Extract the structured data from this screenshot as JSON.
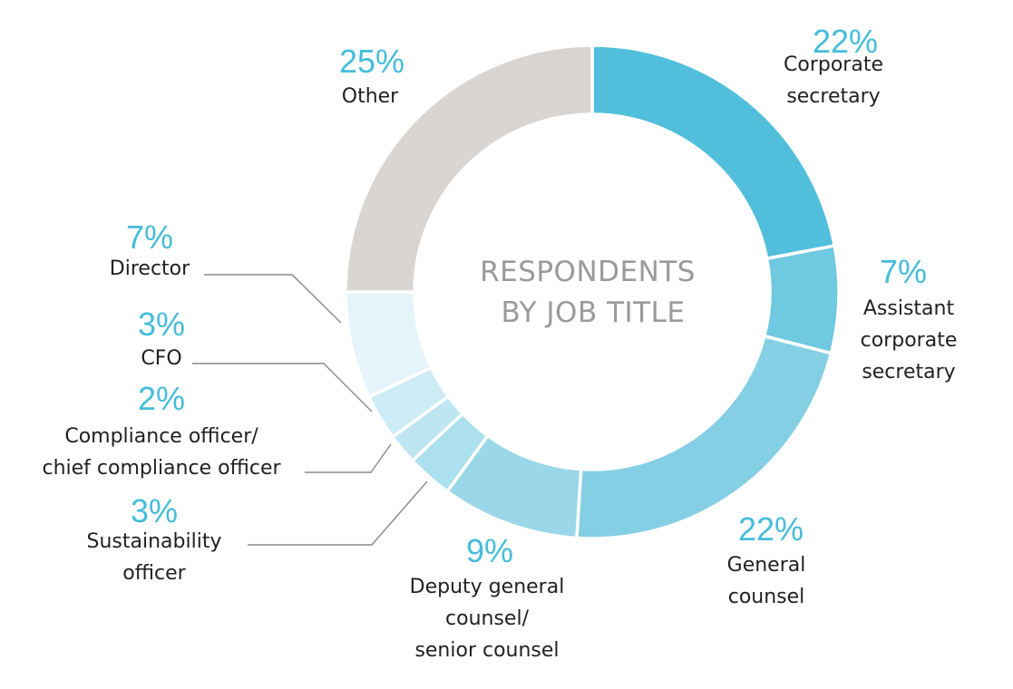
{
  "chart_data": {
    "type": "pie",
    "variant": "donut",
    "title": "RESPONDENTS BY JOB TITLE",
    "title_lines": [
      "RESPONDENTS",
      "BY JOB TITLE"
    ],
    "unit": "%",
    "accent_color": "#45bdd9",
    "slices": [
      {
        "percent": 22,
        "value_label": "22%",
        "label_lines": [
          "Corporate",
          "secretary"
        ],
        "color": "#51bfdb"
      },
      {
        "percent": 7,
        "value_label": "7%",
        "label_lines": [
          "Assistant",
          "corporate",
          "secretary"
        ],
        "color": "#6ec9e1"
      },
      {
        "percent": 22,
        "value_label": "22%",
        "label_lines": [
          "General",
          "counsel"
        ],
        "color": "#84cfe4"
      },
      {
        "percent": 9,
        "value_label": "9%",
        "label_lines": [
          "Deputy general",
          "counsel/",
          "senior counsel"
        ],
        "color": "#9ad7e9"
      },
      {
        "percent": 3,
        "value_label": "3%",
        "label_lines": [
          "Sustainability",
          "officer"
        ],
        "color": "#ace0ee"
      },
      {
        "percent": 2,
        "value_label": "2%",
        "label_lines": [
          "Compliance officer/",
          "chief compliance officer"
        ],
        "color": "#bde6f2"
      },
      {
        "percent": 3,
        "value_label": "3%",
        "label_lines": [
          "CFO"
        ],
        "color": "#cdecf6"
      },
      {
        "percent": 7,
        "value_label": "7%",
        "label_lines": [
          "Director"
        ],
        "color": "#e5f4fb"
      },
      {
        "percent": 25,
        "value_label": "25%",
        "label_lines": [
          "Other"
        ],
        "color": "#d8d5d3"
      }
    ]
  }
}
